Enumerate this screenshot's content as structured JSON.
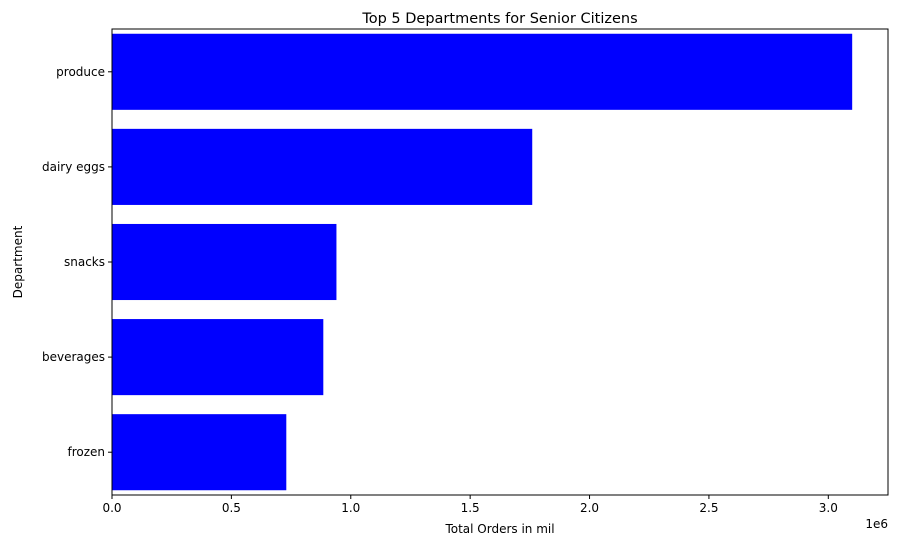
{
  "chart_data": {
    "type": "bar",
    "orientation": "horizontal",
    "title": "Top 5 Departments for Senior Citizens",
    "xlabel": "Total Orders in mil",
    "ylabel": "Department",
    "categories": [
      "produce",
      "dairy eggs",
      "snacks",
      "beverages",
      "frozen"
    ],
    "values": [
      3100000,
      1760000,
      940000,
      885000,
      730000
    ],
    "xlim": [
      0,
      3250000
    ],
    "xticks": [
      0,
      500000,
      1000000,
      1500000,
      2000000,
      2500000,
      3000000
    ],
    "xtick_labels": [
      "0.0",
      "0.5",
      "1.0",
      "1.5",
      "2.0",
      "2.5",
      "3.0"
    ],
    "x_offset_label": "1e6",
    "bar_color": "#0000ff",
    "grid": false,
    "legend": "none"
  }
}
